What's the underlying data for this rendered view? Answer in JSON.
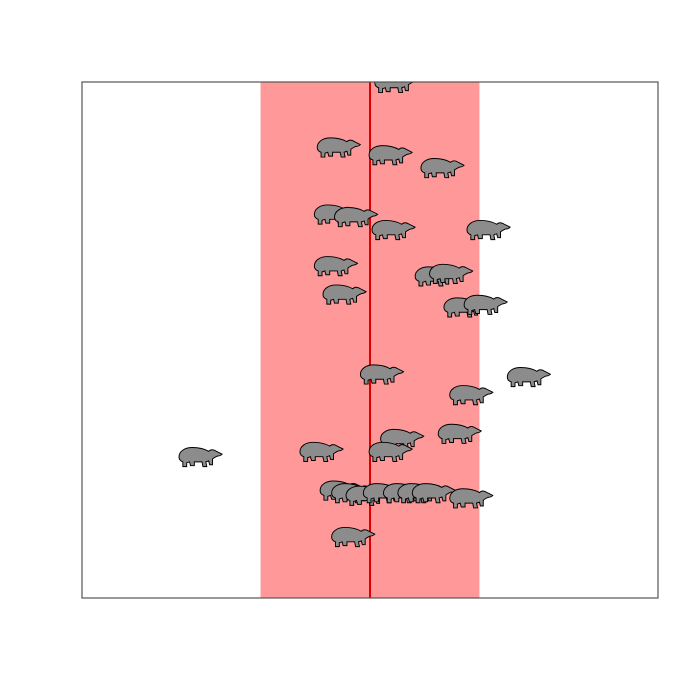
{
  "chart_data": {
    "type": "scatter",
    "title": "",
    "xlabel": "",
    "ylabel": "",
    "axes_shown": false,
    "grid": false,
    "legend": "none",
    "xlim": [
      0,
      100
    ],
    "ylim": [
      0,
      100
    ],
    "marker": "polar-bear-icon",
    "colors": {
      "marker_fill": "#8c8c8c",
      "marker_stroke": "#000000",
      "band_fill": "#ff9999",
      "center_line": "#dd0000",
      "frame": "#555555"
    },
    "band": {
      "x_start": 31,
      "x_end": 69
    },
    "center_line_x": 50,
    "points": [
      {
        "x": 54.5,
        "y": 100.0
      },
      {
        "x": 44.5,
        "y": 87.5
      },
      {
        "x": 53.5,
        "y": 86.0
      },
      {
        "x": 62.5,
        "y": 83.5
      },
      {
        "x": 44.0,
        "y": 74.5
      },
      {
        "x": 47.5,
        "y": 74.0
      },
      {
        "x": 54.0,
        "y": 71.5
      },
      {
        "x": 70.5,
        "y": 71.5
      },
      {
        "x": 44.0,
        "y": 64.5
      },
      {
        "x": 61.5,
        "y": 62.5
      },
      {
        "x": 64.0,
        "y": 63.0
      },
      {
        "x": 45.5,
        "y": 59.0
      },
      {
        "x": 66.5,
        "y": 56.5
      },
      {
        "x": 70.0,
        "y": 57.0
      },
      {
        "x": 52.0,
        "y": 43.5
      },
      {
        "x": 77.5,
        "y": 43.0
      },
      {
        "x": 67.5,
        "y": 39.5
      },
      {
        "x": 65.5,
        "y": 32.0
      },
      {
        "x": 55.5,
        "y": 31.0
      },
      {
        "x": 20.5,
        "y": 27.5
      },
      {
        "x": 41.5,
        "y": 28.5
      },
      {
        "x": 53.5,
        "y": 28.5
      },
      {
        "x": 45.0,
        "y": 21.0
      },
      {
        "x": 47.0,
        "y": 20.5
      },
      {
        "x": 49.5,
        "y": 20.0
      },
      {
        "x": 52.5,
        "y": 20.5
      },
      {
        "x": 56.0,
        "y": 20.5
      },
      {
        "x": 58.5,
        "y": 20.5
      },
      {
        "x": 61.0,
        "y": 20.5
      },
      {
        "x": 67.5,
        "y": 19.5
      },
      {
        "x": 47.0,
        "y": 12.0
      }
    ]
  }
}
